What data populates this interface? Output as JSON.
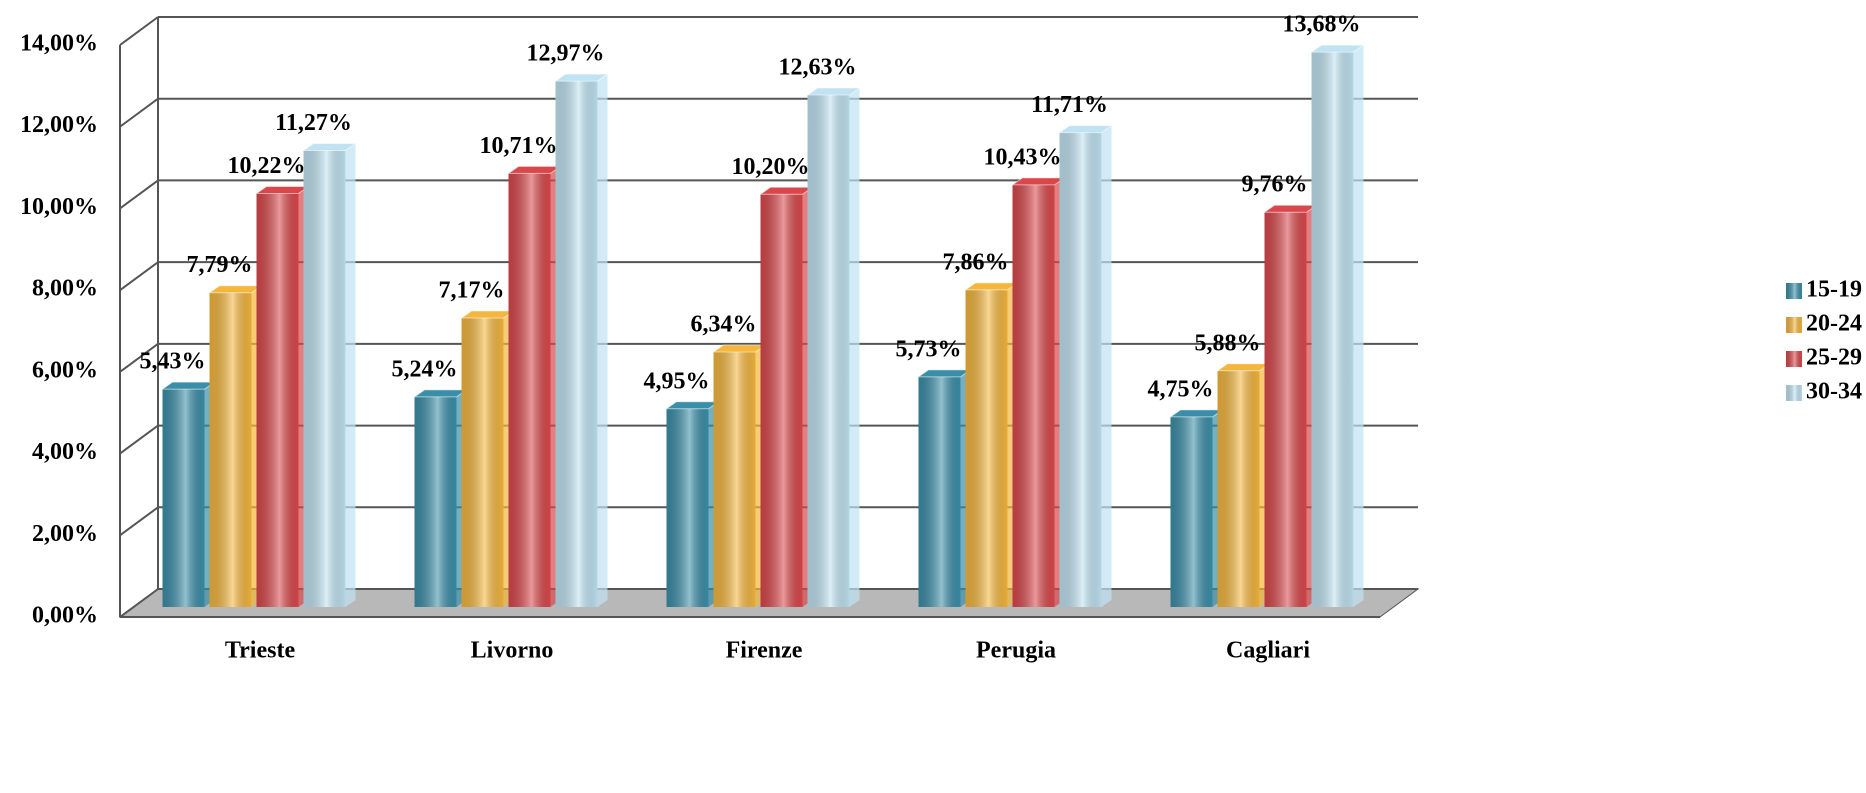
{
  "chart_data": {
    "type": "bar",
    "categories": [
      "Trieste",
      "Livorno",
      "Firenze",
      "Perugia",
      "Cagliari"
    ],
    "series": [
      {
        "name": "15-19",
        "color": "#3a8ea8",
        "values": [
          5.43,
          5.24,
          4.95,
          5.73,
          4.75
        ],
        "value_labels": [
          "5,43%",
          "5,24%",
          "4,95%",
          "5,73%",
          "4,75%"
        ]
      },
      {
        "name": "20-24",
        "color": "#f4b63c",
        "values": [
          7.79,
          7.17,
          6.34,
          7.86,
          5.88
        ],
        "value_labels": [
          "7,79%",
          "7,17%",
          "6,34%",
          "7,86%",
          "5,88%"
        ]
      },
      {
        "name": "25-29",
        "color": "#d9474b",
        "values": [
          10.22,
          10.71,
          10.2,
          10.43,
          9.76
        ],
        "value_labels": [
          "10,22%",
          "10,71%",
          "10,20%",
          "10,43%",
          "9,76%"
        ]
      },
      {
        "name": "30-34",
        "color": "#bfe3f2",
        "values": [
          11.27,
          12.97,
          12.63,
          11.71,
          13.68
        ],
        "value_labels": [
          "11,27%",
          "12,97%",
          "12,63%",
          "11,71%",
          "13,68%"
        ]
      }
    ],
    "ylim": [
      0,
      14
    ],
    "yticks": [
      {
        "value": 0,
        "label": "0,00%"
      },
      {
        "value": 2,
        "label": "2,00%"
      },
      {
        "value": 4,
        "label": "4,00%"
      },
      {
        "value": 6,
        "label": "6,00%"
      },
      {
        "value": 8,
        "label": "8,00%"
      },
      {
        "value": 10,
        "label": "10,00%"
      },
      {
        "value": 12,
        "label": "12,00%"
      },
      {
        "value": 14,
        "label": "14,00%"
      }
    ],
    "grid": true,
    "legend": "right"
  }
}
